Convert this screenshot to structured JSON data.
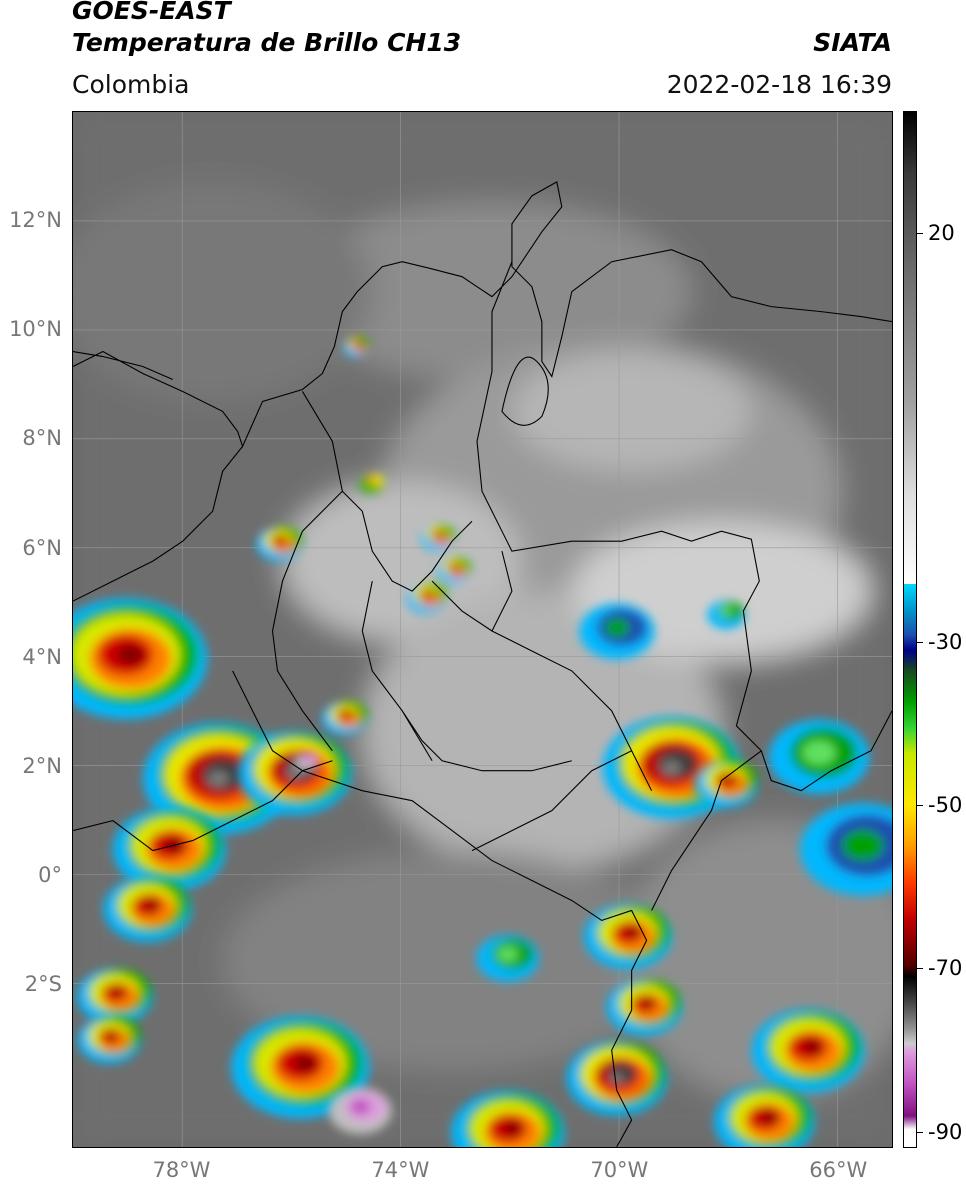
{
  "header": {
    "title_line1": "GOES-EAST",
    "title_line2": "Temperatura de Brillo CH13",
    "organization": "SIATA",
    "region": "Colombia",
    "datetime": "2022-02-18 16:39"
  },
  "map": {
    "lat_range": [
      -5.0,
      14.0
    ],
    "lon_range": [
      -80.0,
      -65.0
    ],
    "lat_labels": [
      {
        "lat": 12,
        "text": "12°N"
      },
      {
        "lat": 10,
        "text": "10°N"
      },
      {
        "lat": 8,
        "text": "8°N"
      },
      {
        "lat": 6,
        "text": "6°N"
      },
      {
        "lat": 4,
        "text": "4°N"
      },
      {
        "lat": 2,
        "text": "2°N"
      },
      {
        "lat": 0,
        "text": "0°"
      },
      {
        "lat": -2,
        "text": "2°S"
      }
    ],
    "lon_labels": [
      {
        "lon": -78,
        "text": "78°W"
      },
      {
        "lon": -74,
        "text": "74°W"
      },
      {
        "lon": -70,
        "text": "70°W"
      },
      {
        "lon": -66,
        "text": "66°W"
      }
    ],
    "gridlines": true,
    "storm_cells": [
      {
        "lon": -79.0,
        "lat": 4.0,
        "r": 1.3,
        "core": "red"
      },
      {
        "lon": -77.3,
        "lat": 1.8,
        "r": 1.2,
        "core": "black"
      },
      {
        "lon": -75.9,
        "lat": 1.9,
        "r": 0.9,
        "core": "black"
      },
      {
        "lon": -75.7,
        "lat": 2.1,
        "r": 0.2,
        "core": "magenta"
      },
      {
        "lon": -78.2,
        "lat": 0.5,
        "r": 0.9,
        "core": "red"
      },
      {
        "lon": -78.6,
        "lat": -0.6,
        "r": 0.7,
        "core": "red"
      },
      {
        "lon": -79.2,
        "lat": -2.2,
        "r": 0.6,
        "core": "red"
      },
      {
        "lon": -75.0,
        "lat": 2.9,
        "r": 0.35,
        "core": "red"
      },
      {
        "lon": -76.2,
        "lat": 6.1,
        "r": 0.35,
        "core": "red"
      },
      {
        "lon": -73.3,
        "lat": 6.2,
        "r": 0.25,
        "core": "red"
      },
      {
        "lon": -73.0,
        "lat": 5.6,
        "r": 0.25,
        "core": "red"
      },
      {
        "lon": -73.5,
        "lat": 5.1,
        "r": 0.3,
        "core": "red"
      },
      {
        "lon": -74.8,
        "lat": 9.7,
        "r": 0.18,
        "core": "red"
      },
      {
        "lon": -74.5,
        "lat": 7.2,
        "r": 0.18,
        "core": "yellow"
      },
      {
        "lon": -69.0,
        "lat": 2.0,
        "r": 1.1,
        "core": "black"
      },
      {
        "lon": -68.0,
        "lat": 1.7,
        "r": 0.5,
        "core": "red"
      },
      {
        "lon": -66.3,
        "lat": 2.2,
        "r": 0.8,
        "core": "green"
      },
      {
        "lon": -65.5,
        "lat": 0.5,
        "r": 1.0,
        "core": "blue"
      },
      {
        "lon": -69.8,
        "lat": -1.1,
        "r": 0.7,
        "core": "red"
      },
      {
        "lon": -69.5,
        "lat": -2.4,
        "r": 0.6,
        "core": "red"
      },
      {
        "lon": -75.8,
        "lat": -3.5,
        "r": 1.1,
        "core": "red"
      },
      {
        "lon": -74.7,
        "lat": -4.3,
        "r": 0.5,
        "core": "magenta"
      },
      {
        "lon": -79.3,
        "lat": -3.0,
        "r": 0.5,
        "core": "red"
      },
      {
        "lon": -70.0,
        "lat": -3.7,
        "r": 0.8,
        "core": "black"
      },
      {
        "lon": -66.5,
        "lat": -3.2,
        "r": 0.9,
        "core": "red"
      },
      {
        "lon": -72.0,
        "lat": -4.7,
        "r": 0.9,
        "core": "red"
      },
      {
        "lon": -67.3,
        "lat": -4.5,
        "r": 0.8,
        "core": "red"
      },
      {
        "lon": -72.0,
        "lat": -1.5,
        "r": 0.5,
        "core": "green"
      },
      {
        "lon": -70.0,
        "lat": 4.5,
        "r": 0.6,
        "core": "blue"
      },
      {
        "lon": -68.0,
        "lat": 4.8,
        "r": 0.3,
        "core": "green"
      }
    ]
  },
  "colorbar": {
    "range": [
      -92,
      35
    ],
    "ticks": [
      {
        "value": 20,
        "text": "20"
      },
      {
        "value": -30,
        "text": "-30"
      },
      {
        "value": -50,
        "text": "-50"
      },
      {
        "value": -70,
        "text": "-70"
      },
      {
        "value": -90,
        "text": "-90"
      }
    ]
  }
}
